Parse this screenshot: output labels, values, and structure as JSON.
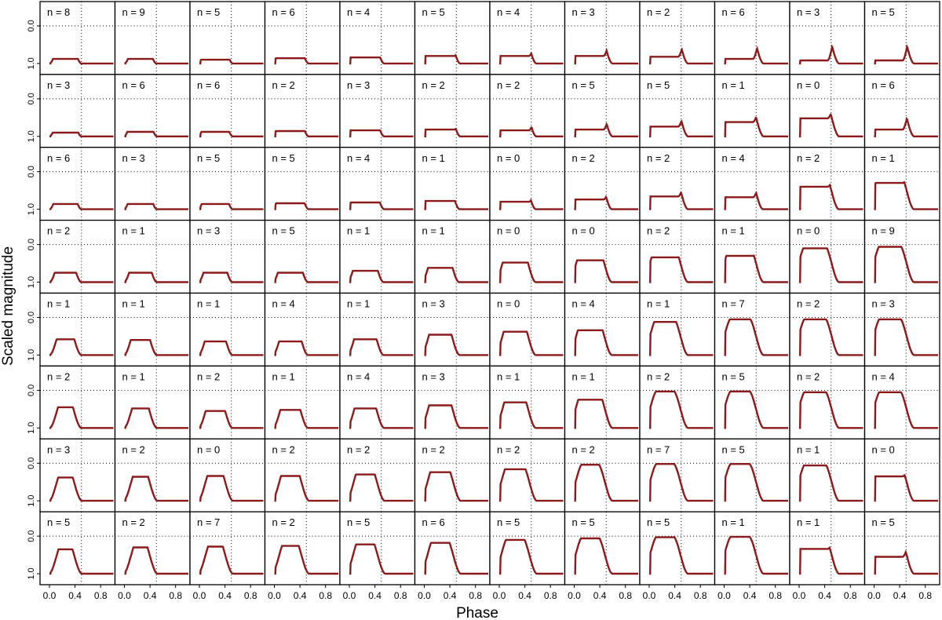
{
  "chart_data": {
    "type": "line",
    "layout": "grid of small-multiple light curves, 8 rows x 12 columns",
    "xlabel": "Phase",
    "ylabel": "Scaled magnitude",
    "xlim": [
      0.0,
      1.0
    ],
    "ylim": [
      1.0,
      0.0
    ],
    "y_reversed": true,
    "xticks": [
      "0.0",
      "0.4",
      "0.8"
    ],
    "yticks": [
      "0.0",
      "1.0"
    ],
    "reference_lines": {
      "y": 0.0,
      "x": 0.5,
      "style": "dotted"
    },
    "line_color": "#8b1a1a",
    "panel_labels": [
      [
        "n = 8",
        "n = 9",
        "n = 5",
        "n = 6",
        "n = 4",
        "n = 5",
        "n = 4",
        "n = 3",
        "n = 2",
        "n = 6",
        "n = 3",
        "n = 5"
      ],
      [
        "n = 3",
        "n = 6",
        "n = 6",
        "n = 2",
        "n = 3",
        "n = 2",
        "n = 2",
        "n = 5",
        "n = 5",
        "n = 1",
        "n = 0",
        "n = 6"
      ],
      [
        "n = 6",
        "n = 3",
        "n = 5",
        "n = 5",
        "n = 4",
        "n = 1",
        "n = 0",
        "n = 2",
        "n = 2",
        "n = 4",
        "n = 2",
        "n = 1"
      ],
      [
        "n = 2",
        "n = 1",
        "n = 3",
        "n = 5",
        "n = 1",
        "n = 1",
        "n = 0",
        "n = 0",
        "n = 2",
        "n = 1",
        "n = 0",
        "n = 9"
      ],
      [
        "n = 1",
        "n = 1",
        "n = 1",
        "n = 4",
        "n = 1",
        "n = 3",
        "n = 0",
        "n = 4",
        "n = 1",
        "n = 7",
        "n = 2",
        "n = 3"
      ],
      [
        "n = 2",
        "n = 1",
        "n = 2",
        "n = 1",
        "n = 4",
        "n = 3",
        "n = 1",
        "n = 1",
        "n = 2",
        "n = 5",
        "n = 2",
        "n = 4"
      ],
      [
        "n = 3",
        "n = 2",
        "n = 0",
        "n = 2",
        "n = 2",
        "n = 2",
        "n = 2",
        "n = 2",
        "n = 7",
        "n = 5",
        "n = 1",
        "n = 0"
      ],
      [
        "n = 5",
        "n = 2",
        "n = 7",
        "n = 2",
        "n = 5",
        "n = 6",
        "n = 5",
        "n = 5",
        "n = 5",
        "n = 1",
        "n = 1",
        "n = 5"
      ]
    ],
    "secondary_minimum_depth": [
      [
        0.88,
        0.88,
        0.9,
        0.86,
        0.84,
        0.8,
        0.8,
        0.8,
        0.82,
        0.88,
        0.92,
        0.92
      ],
      [
        0.9,
        0.88,
        0.88,
        0.86,
        0.84,
        0.82,
        0.84,
        0.82,
        0.74,
        0.62,
        0.52,
        0.82
      ],
      [
        0.86,
        0.86,
        0.86,
        0.84,
        0.82,
        0.78,
        0.8,
        0.74,
        0.66,
        0.68,
        0.4,
        0.3
      ],
      [
        0.75,
        0.75,
        0.75,
        0.75,
        0.7,
        0.62,
        0.48,
        0.42,
        0.34,
        0.3,
        0.1,
        0.06
      ],
      [
        0.58,
        0.6,
        0.64,
        0.64,
        0.58,
        0.46,
        0.38,
        0.34,
        0.12,
        0.05,
        0.05,
        0.05
      ],
      [
        0.45,
        0.48,
        0.55,
        0.52,
        0.48,
        0.4,
        0.32,
        0.25,
        0.03,
        0.03,
        0.05,
        0.05
      ],
      [
        0.38,
        0.36,
        0.34,
        0.34,
        0.3,
        0.24,
        0.16,
        0.04,
        0.02,
        0.02,
        0.06,
        0.35
      ],
      [
        0.35,
        0.3,
        0.28,
        0.26,
        0.22,
        0.18,
        0.1,
        0.06,
        0.03,
        0.02,
        0.34,
        0.55
      ]
    ],
    "flat_top_width": [
      [
        0.0,
        0.0,
        0.05,
        0.08,
        0.1,
        0.14,
        0.18,
        0.22,
        0.24,
        0.26,
        0.28,
        0.28
      ],
      [
        0.0,
        0.02,
        0.05,
        0.08,
        0.1,
        0.14,
        0.18,
        0.22,
        0.24,
        0.26,
        0.28,
        0.28
      ],
      [
        0.0,
        0.02,
        0.05,
        0.08,
        0.1,
        0.12,
        0.16,
        0.2,
        0.24,
        0.24,
        0.27,
        0.28
      ],
      [
        0.0,
        0.02,
        0.04,
        0.06,
        0.08,
        0.1,
        0.16,
        0.2,
        0.24,
        0.26,
        0.28,
        0.28
      ],
      [
        0.0,
        0.02,
        0.04,
        0.06,
        0.08,
        0.12,
        0.16,
        0.2,
        0.24,
        0.26,
        0.28,
        0.28
      ],
      [
        0.0,
        0.02,
        0.04,
        0.06,
        0.1,
        0.14,
        0.16,
        0.22,
        0.24,
        0.26,
        0.28,
        0.28
      ],
      [
        0.02,
        0.04,
        0.06,
        0.1,
        0.12,
        0.16,
        0.2,
        0.22,
        0.24,
        0.26,
        0.28,
        0.28
      ],
      [
        0.02,
        0.04,
        0.06,
        0.1,
        0.14,
        0.16,
        0.2,
        0.22,
        0.24,
        0.26,
        0.28,
        0.28
      ]
    ]
  }
}
